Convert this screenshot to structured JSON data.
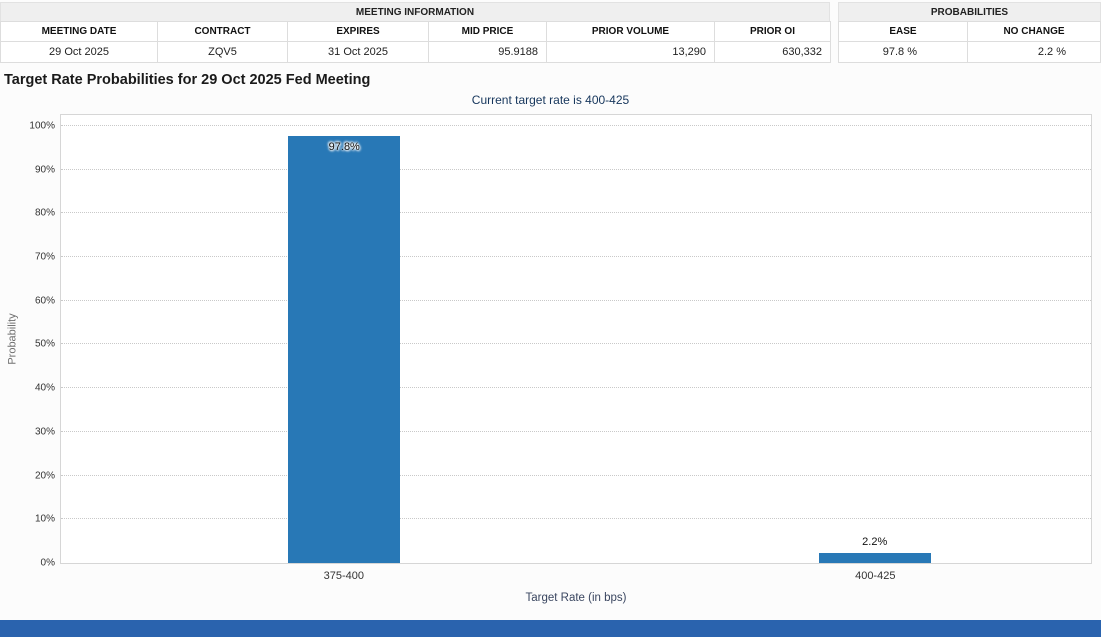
{
  "colors": {
    "bar": "#2878b6",
    "footer_bar": "#2a63ae",
    "subtitle_text": "#16365c"
  },
  "meeting_info": {
    "section_title": "MEETING INFORMATION",
    "columns": [
      "MEETING DATE",
      "CONTRACT",
      "EXPIRES",
      "MID PRICE",
      "PRIOR VOLUME",
      "PRIOR OI"
    ],
    "values": [
      "29 Oct 2025",
      "ZQV5",
      "31 Oct 2025",
      "95.9188",
      "13,290",
      "630,332"
    ]
  },
  "probabilities": {
    "section_title": "PROBABILITIES",
    "columns": [
      "EASE",
      "NO CHANGE"
    ],
    "values": [
      "97.8 %",
      "2.2 %"
    ]
  },
  "chart_header": "Target Rate Probabilities for 29 Oct 2025 Fed Meeting",
  "chart_data": {
    "type": "bar",
    "title": "Current target rate is 400-425",
    "categories": [
      "375-400",
      "400-425"
    ],
    "values": [
      97.8,
      2.2
    ],
    "bar_labels": [
      "97.8%",
      "2.2%"
    ],
    "xlabel": "Target Rate (in bps)",
    "ylabel": "Probability",
    "ylim": [
      0,
      100
    ],
    "ytick_step": 10,
    "grid": "horizontal-dotted",
    "legend": "none"
  }
}
